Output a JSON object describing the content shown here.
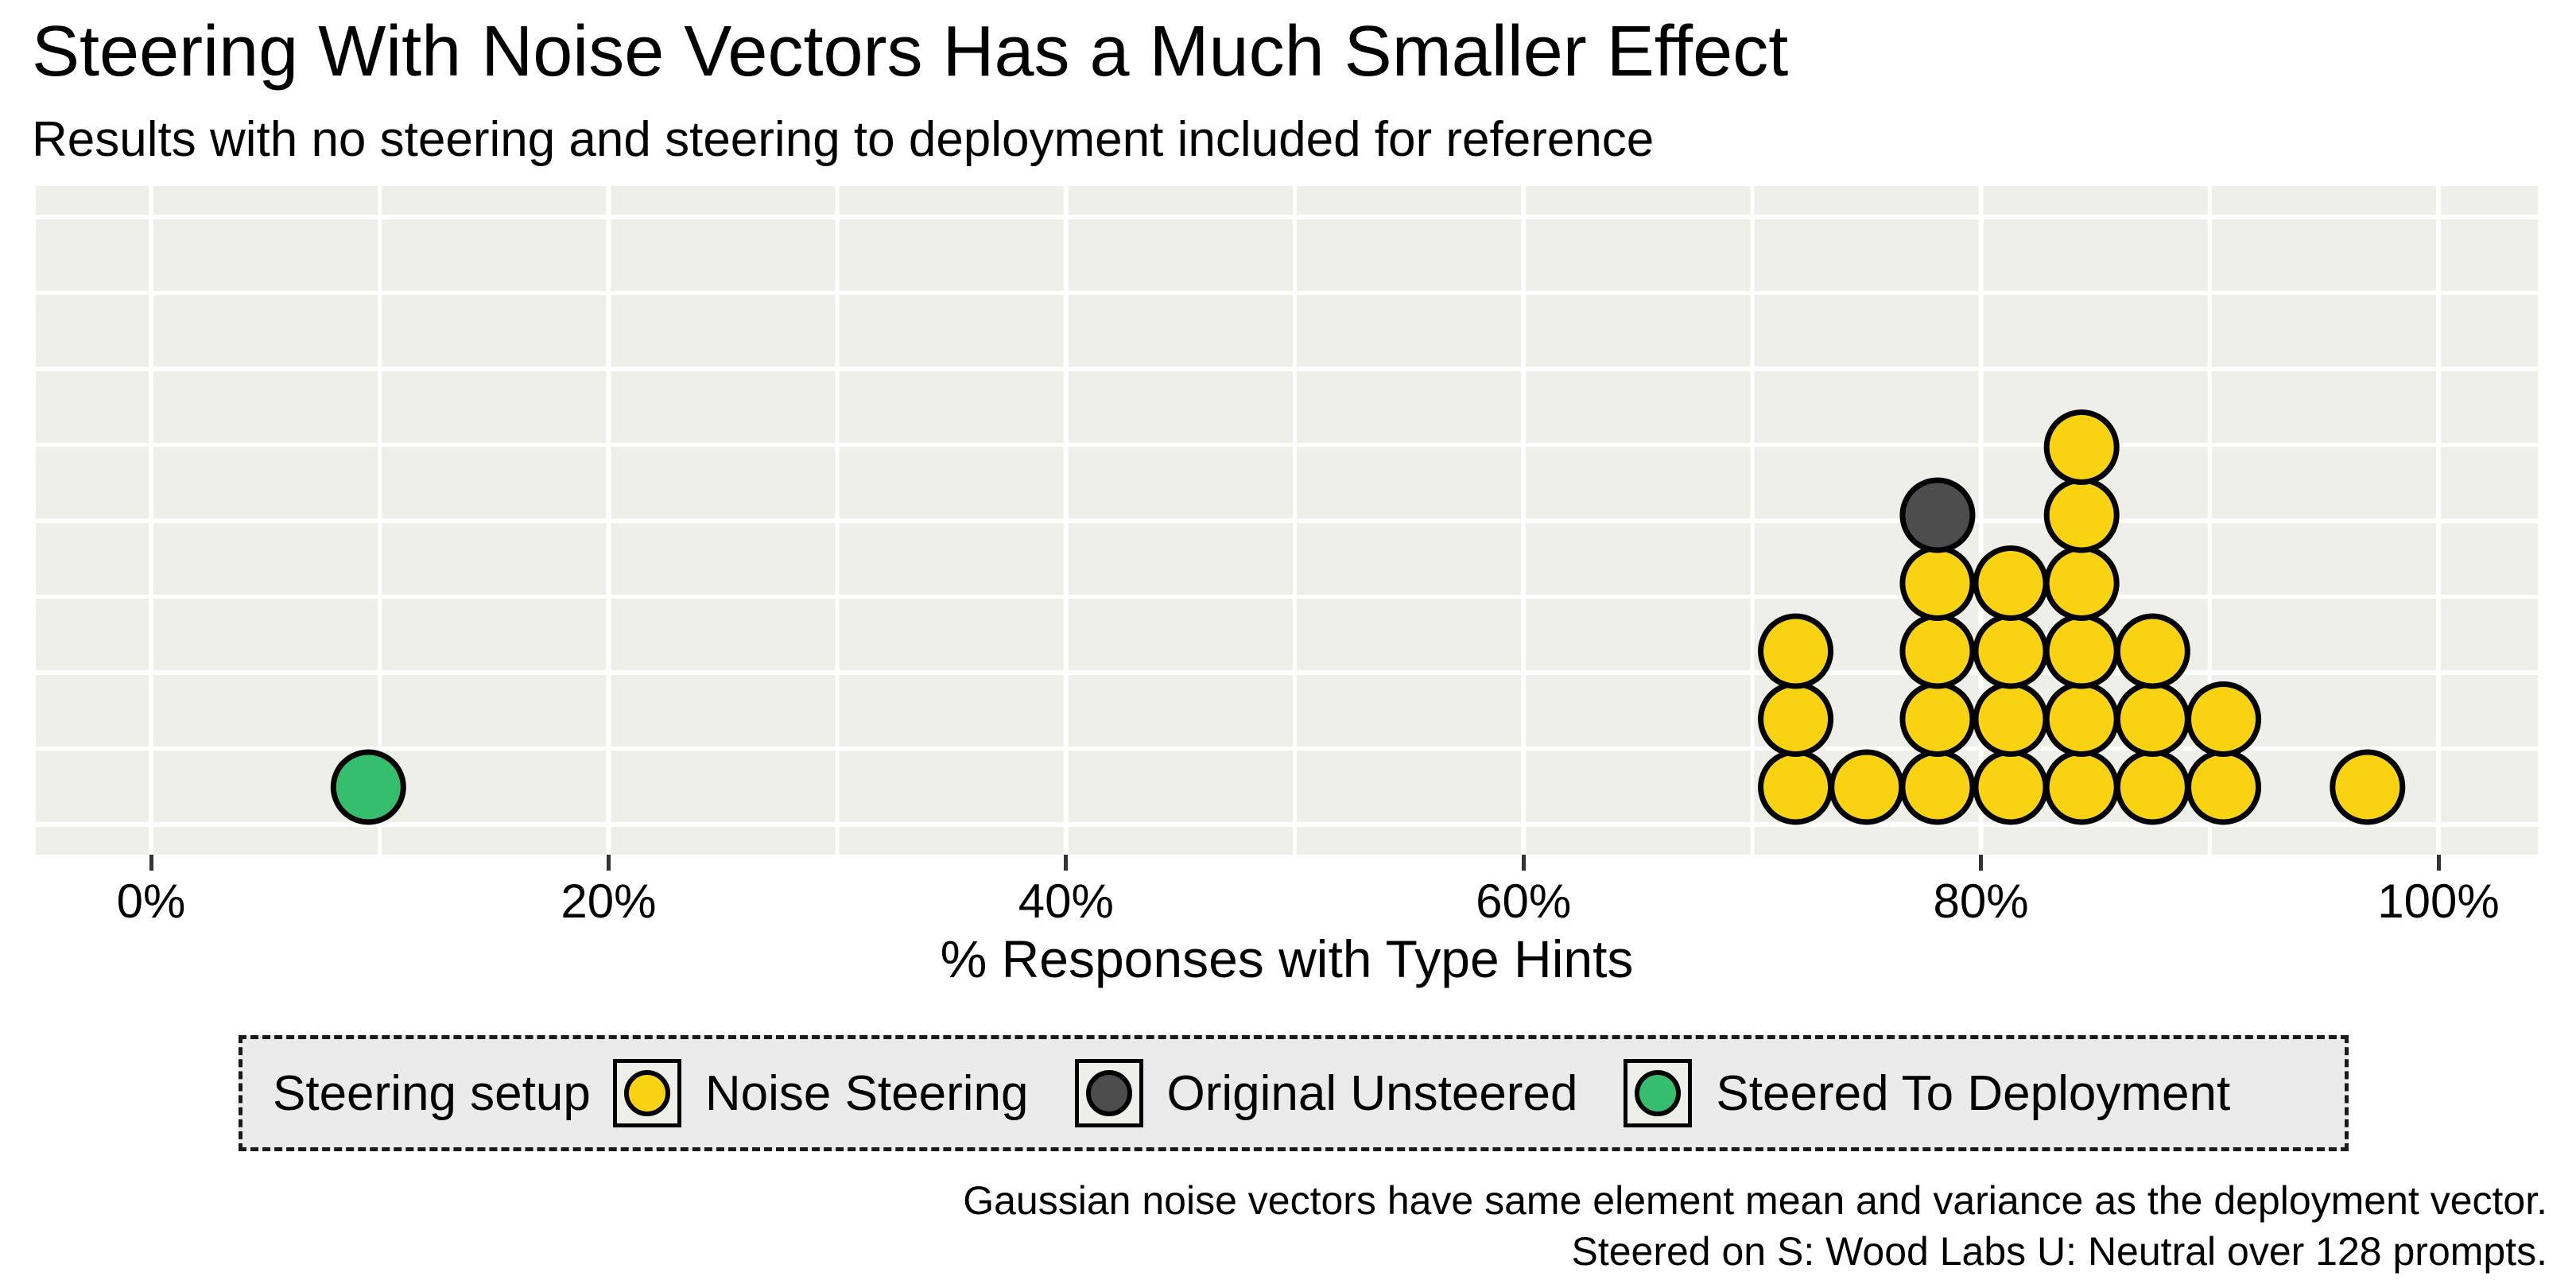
{
  "title": "Steering With Noise Vectors Has a Much Smaller Effect",
  "subtitle": "Results with no steering and steering to deployment included for reference",
  "axis": {
    "x_label": "% Responses with Type Hints",
    "x_ticks": [
      "0%",
      "20%",
      "40%",
      "60%",
      "80%",
      "100%"
    ]
  },
  "legend": {
    "title": "Steering setup",
    "items": [
      {
        "label": "Noise Steering",
        "color": "#F9D212"
      },
      {
        "label": "Original Unsteered",
        "color": "#4D4D4D"
      },
      {
        "label": "Steered To Deployment",
        "color": "#35BE6E"
      }
    ]
  },
  "caption": {
    "line1": "Gaussian noise vectors have same element mean and variance as the deployment vector.",
    "line2": "Steered on S: Wood Labs U: Neutral over 128 prompts."
  },
  "colors": {
    "panel_background": "#EFEFE9",
    "gridline": "#FFFFFF",
    "dot_outline": "#000000",
    "tick_mark": "#333333",
    "legend_background": "#EBEBEB",
    "legend_border": "#1A1A1A"
  },
  "chart_data": {
    "type": "dotplot",
    "title": "Steering With Noise Vectors Has a Much Smaller Effect",
    "subtitle": "Results with no steering and steering to deployment included for reference",
    "xlabel": "% Responses with Type Hints",
    "x_axis": {
      "ticks_pct": [
        0,
        20,
        40,
        60,
        80,
        100
      ],
      "minor_grid_step_pct": 10,
      "xlim_pct": [
        -5,
        104.5
      ]
    },
    "grid": true,
    "legend_position": "bottom",
    "series": [
      {
        "name": "Noise Steering",
        "color": "#F9D212",
        "n_dots": 24,
        "stacks": [
          {
            "x_pct": 71.9,
            "count": 3
          },
          {
            "x_pct": 75.0,
            "count": 1
          },
          {
            "x_pct": 78.1,
            "count": 4
          },
          {
            "x_pct": 81.3,
            "count": 4
          },
          {
            "x_pct": 84.4,
            "count": 6
          },
          {
            "x_pct": 87.5,
            "count": 3
          },
          {
            "x_pct": 90.6,
            "count": 2
          },
          {
            "x_pct": 96.9,
            "count": 1
          }
        ]
      },
      {
        "name": "Original Unsteered",
        "color": "#4D4D4D",
        "n_dots": 1,
        "stacks": [
          {
            "x_pct": 78.1,
            "count": 1,
            "base": 4
          }
        ]
      },
      {
        "name": "Steered To Deployment",
        "color": "#35BE6E",
        "n_dots": 1,
        "stacks": [
          {
            "x_pct": 9.5,
            "count": 1
          }
        ]
      }
    ]
  }
}
